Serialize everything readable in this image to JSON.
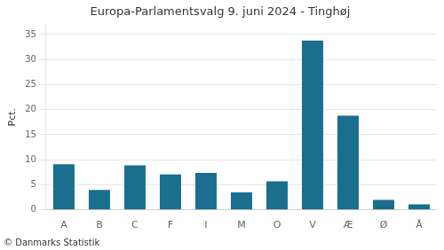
{
  "chart_data": {
    "type": "bar",
    "title": "Europa-Parlamentsvalg 9. juni 2024 - Tinghøj",
    "categories": [
      "A",
      "B",
      "C",
      "F",
      "I",
      "M",
      "O",
      "V",
      "Æ",
      "Ø",
      "Å"
    ],
    "values": [
      9.1,
      4.0,
      8.9,
      7.1,
      7.4,
      3.5,
      5.7,
      33.8,
      18.8,
      2.0,
      1.1
    ],
    "color": "#1a6e8e",
    "ylabel": "Pct.",
    "ylim": [
      0,
      37
    ],
    "yticks": [
      0,
      5,
      10,
      15,
      20,
      25,
      30,
      35
    ],
    "grid": true,
    "annotations": [
      "© Danmarks Statistik"
    ]
  }
}
